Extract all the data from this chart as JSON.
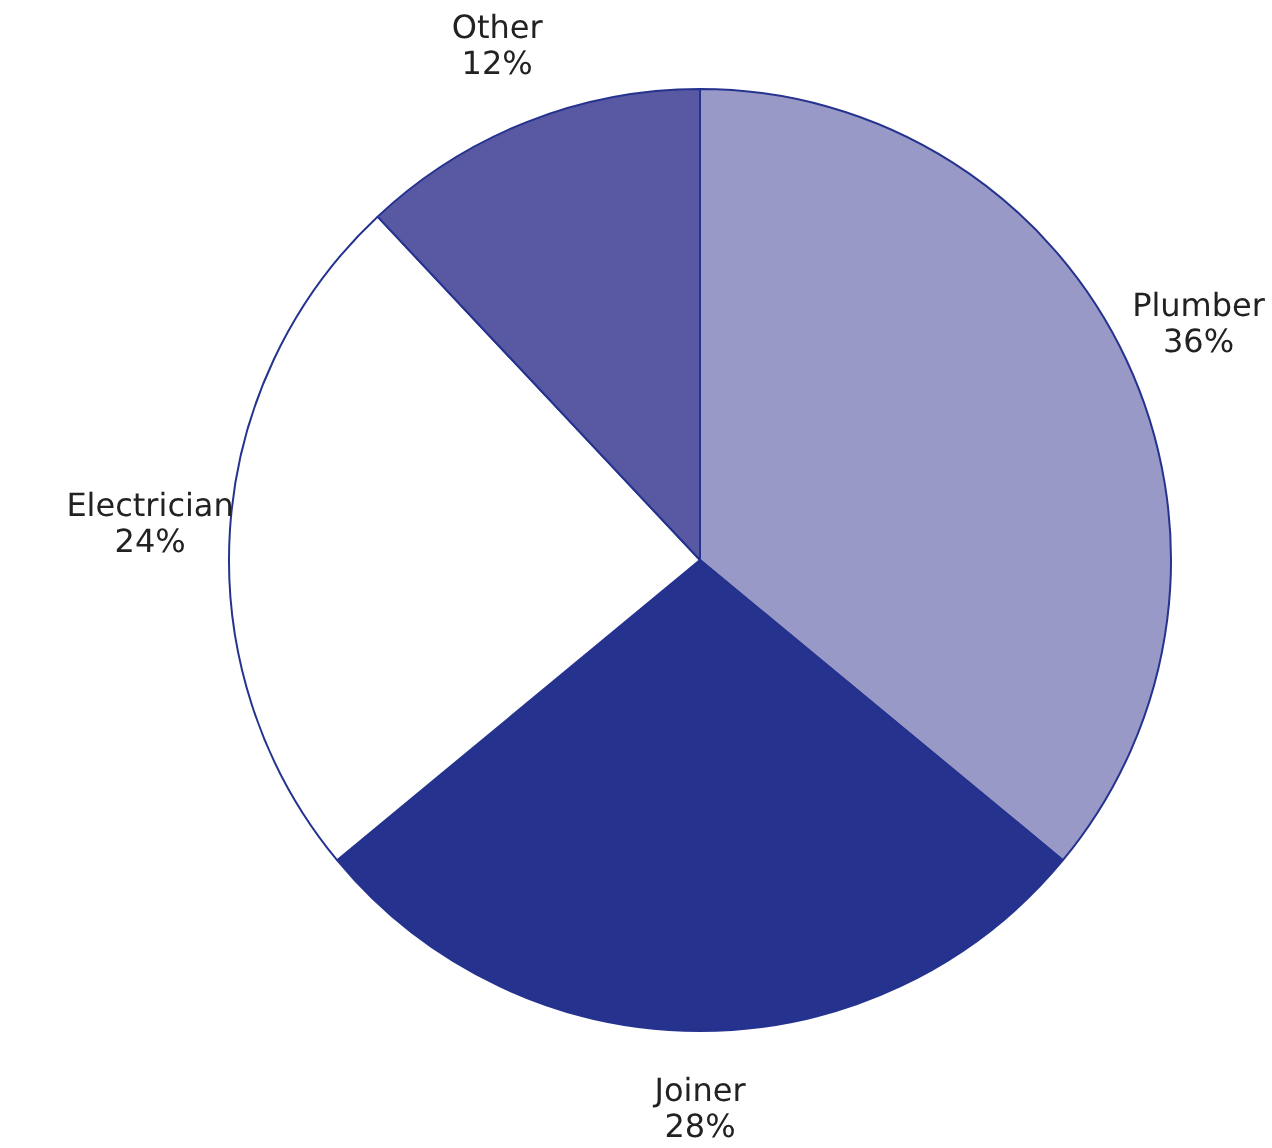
{
  "chart_data": {
    "type": "pie",
    "categories": [
      "Plumber",
      "Joiner",
      "Electrician",
      "Other"
    ],
    "values": [
      36,
      28,
      24,
      12
    ],
    "value_labels": [
      "36%",
      "28%",
      "24%",
      "12%"
    ],
    "colors": [
      "#9999c8",
      "#25338f",
      "#ffffff",
      "#5858a3"
    ],
    "legend": false
  }
}
